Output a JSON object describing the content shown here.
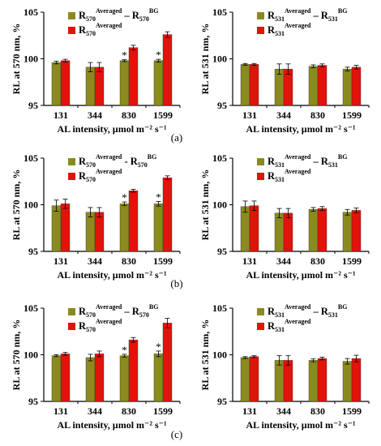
{
  "colors": {
    "olive": "#8a8a1e",
    "red": "#e3120b",
    "axis": "#000000"
  },
  "panel_labels": [
    "(a)",
    "(b)",
    "(c)"
  ],
  "chart_data": [
    {
      "type": "bar",
      "panel": "a-left",
      "ylabel": "RL at 570 nm, %",
      "xlabel": "AL intensity, µmol m⁻² s⁻¹",
      "ylim": [
        95,
        105
      ],
      "yticks": [
        95,
        100,
        105
      ],
      "categories": [
        "131",
        "344",
        "830",
        "1599"
      ],
      "legend": [
        {
          "base": "R",
          "sub": "570",
          "sup": "Averaged",
          "minus": " – R",
          "sub2": "570",
          "sup2": "BG"
        },
        {
          "base": "R",
          "sub": "570",
          "sup": "Averaged"
        }
      ],
      "series": [
        {
          "values": [
            99.6,
            99.1,
            99.8,
            99.8
          ],
          "errors": [
            0.15,
            0.5,
            0.1,
            0.15
          ]
        },
        {
          "values": [
            99.8,
            99.1,
            101.2,
            102.6
          ],
          "errors": [
            0.15,
            0.5,
            0.25,
            0.3
          ]
        }
      ],
      "stars": [
        "",
        "",
        "*",
        "*"
      ]
    },
    {
      "type": "bar",
      "panel": "a-right",
      "ylabel": "RL at 531 nm, %",
      "xlabel": "AL intensity, µmol m⁻² s⁻¹",
      "ylim": [
        95,
        105
      ],
      "yticks": [
        95,
        100,
        105
      ],
      "categories": [
        "131",
        "344",
        "830",
        "1599"
      ],
      "legend": [
        {
          "base": "R",
          "sub": "531",
          "sup": "Averaged",
          "minus": " – R",
          "sub2": "531",
          "sup2": "BG"
        },
        {
          "base": "R",
          "sub": "531",
          "sup": "Averaged"
        }
      ],
      "series": [
        {
          "values": [
            99.4,
            98.9,
            99.2,
            98.9
          ],
          "errors": [
            0.1,
            0.55,
            0.15,
            0.2
          ]
        },
        {
          "values": [
            99.4,
            98.9,
            99.3,
            99.1
          ],
          "errors": [
            0.1,
            0.55,
            0.15,
            0.2
          ]
        }
      ],
      "stars": [
        "",
        "",
        "",
        ""
      ]
    },
    {
      "type": "bar",
      "panel": "b-left",
      "ylabel": "RL at 570 nm, %",
      "xlabel": "AL intensity, µmol m⁻² s⁻¹",
      "ylim": [
        95,
        105
      ],
      "yticks": [
        95,
        100,
        105
      ],
      "categories": [
        "131",
        "344",
        "830",
        "1599"
      ],
      "legend": [
        {
          "base": "R",
          "sub": "570",
          "sup": "Averaged",
          "minus": " - R",
          "sub2": "570",
          "sup2": "BG"
        },
        {
          "base": "R",
          "sub": "570",
          "sup": "Averaged"
        }
      ],
      "series": [
        {
          "values": [
            99.9,
            99.2,
            100.1,
            100.1
          ],
          "errors": [
            0.6,
            0.5,
            0.2,
            0.25
          ]
        },
        {
          "values": [
            100.1,
            99.2,
            101.5,
            102.9
          ],
          "errors": [
            0.5,
            0.5,
            0.15,
            0.2
          ]
        }
      ],
      "stars": [
        "",
        "",
        "*",
        "*"
      ]
    },
    {
      "type": "bar",
      "panel": "b-right",
      "ylabel": "RL at 531 nm, %",
      "xlabel": "AL intensity, µmol m⁻² s⁻¹",
      "ylim": [
        95,
        105
      ],
      "yticks": [
        95,
        100,
        105
      ],
      "categories": [
        "131",
        "344",
        "830",
        "1599"
      ],
      "legend": [
        {
          "base": "R",
          "sub": "531",
          "sup": "Averaged",
          "minus": " – R",
          "sub2": "531",
          "sup2": "BG"
        },
        {
          "base": "R",
          "sub": "531",
          "sup": "Averaged"
        }
      ],
      "series": [
        {
          "values": [
            99.8,
            99.1,
            99.5,
            99.2
          ],
          "errors": [
            0.6,
            0.5,
            0.2,
            0.3
          ]
        },
        {
          "values": [
            99.9,
            99.1,
            99.6,
            99.4
          ],
          "errors": [
            0.5,
            0.5,
            0.2,
            0.25
          ]
        }
      ],
      "stars": [
        "",
        "",
        "",
        ""
      ]
    },
    {
      "type": "bar",
      "panel": "c-left",
      "ylabel": "RL at 570 nm, %",
      "xlabel": "AL intensity, µmol m⁻² s⁻¹",
      "ylim": [
        95,
        105
      ],
      "yticks": [
        95,
        100,
        105
      ],
      "categories": [
        "131",
        "344",
        "830",
        "1599"
      ],
      "legend": [
        {
          "base": "R",
          "sub": "570",
          "sup": "Averaged",
          "minus": " – R",
          "sub2": "570",
          "sup2": "BG"
        },
        {
          "base": "R",
          "sub": "570",
          "sup": "Averaged"
        }
      ],
      "series": [
        {
          "values": [
            99.9,
            99.7,
            99.9,
            100.1
          ],
          "errors": [
            0.1,
            0.35,
            0.15,
            0.3
          ]
        },
        {
          "values": [
            100.1,
            100.1,
            101.6,
            103.4
          ],
          "errors": [
            0.15,
            0.3,
            0.25,
            0.5
          ]
        }
      ],
      "stars": [
        "",
        "",
        "*",
        "*"
      ]
    },
    {
      "type": "bar",
      "panel": "c-right",
      "ylabel": "RL at 531 nm, %",
      "xlabel": "AL intensity, µmol m⁻² s⁻¹",
      "ylim": [
        95,
        105
      ],
      "yticks": [
        95,
        100,
        105
      ],
      "categories": [
        "131",
        "344",
        "830",
        "1599"
      ],
      "legend": [
        {
          "base": "R",
          "sub": "531",
          "sup": "Averaged",
          "minus": " – R",
          "sub2": "531",
          "sup2": "BG"
        },
        {
          "base": "R",
          "sub": "531",
          "sup": "Averaged"
        }
      ],
      "series": [
        {
          "values": [
            99.7,
            99.4,
            99.4,
            99.3
          ],
          "errors": [
            0.1,
            0.5,
            0.15,
            0.3
          ]
        },
        {
          "values": [
            99.8,
            99.4,
            99.6,
            99.6
          ],
          "errors": [
            0.1,
            0.5,
            0.15,
            0.35
          ]
        }
      ],
      "stars": [
        "",
        "",
        "",
        ""
      ]
    }
  ]
}
